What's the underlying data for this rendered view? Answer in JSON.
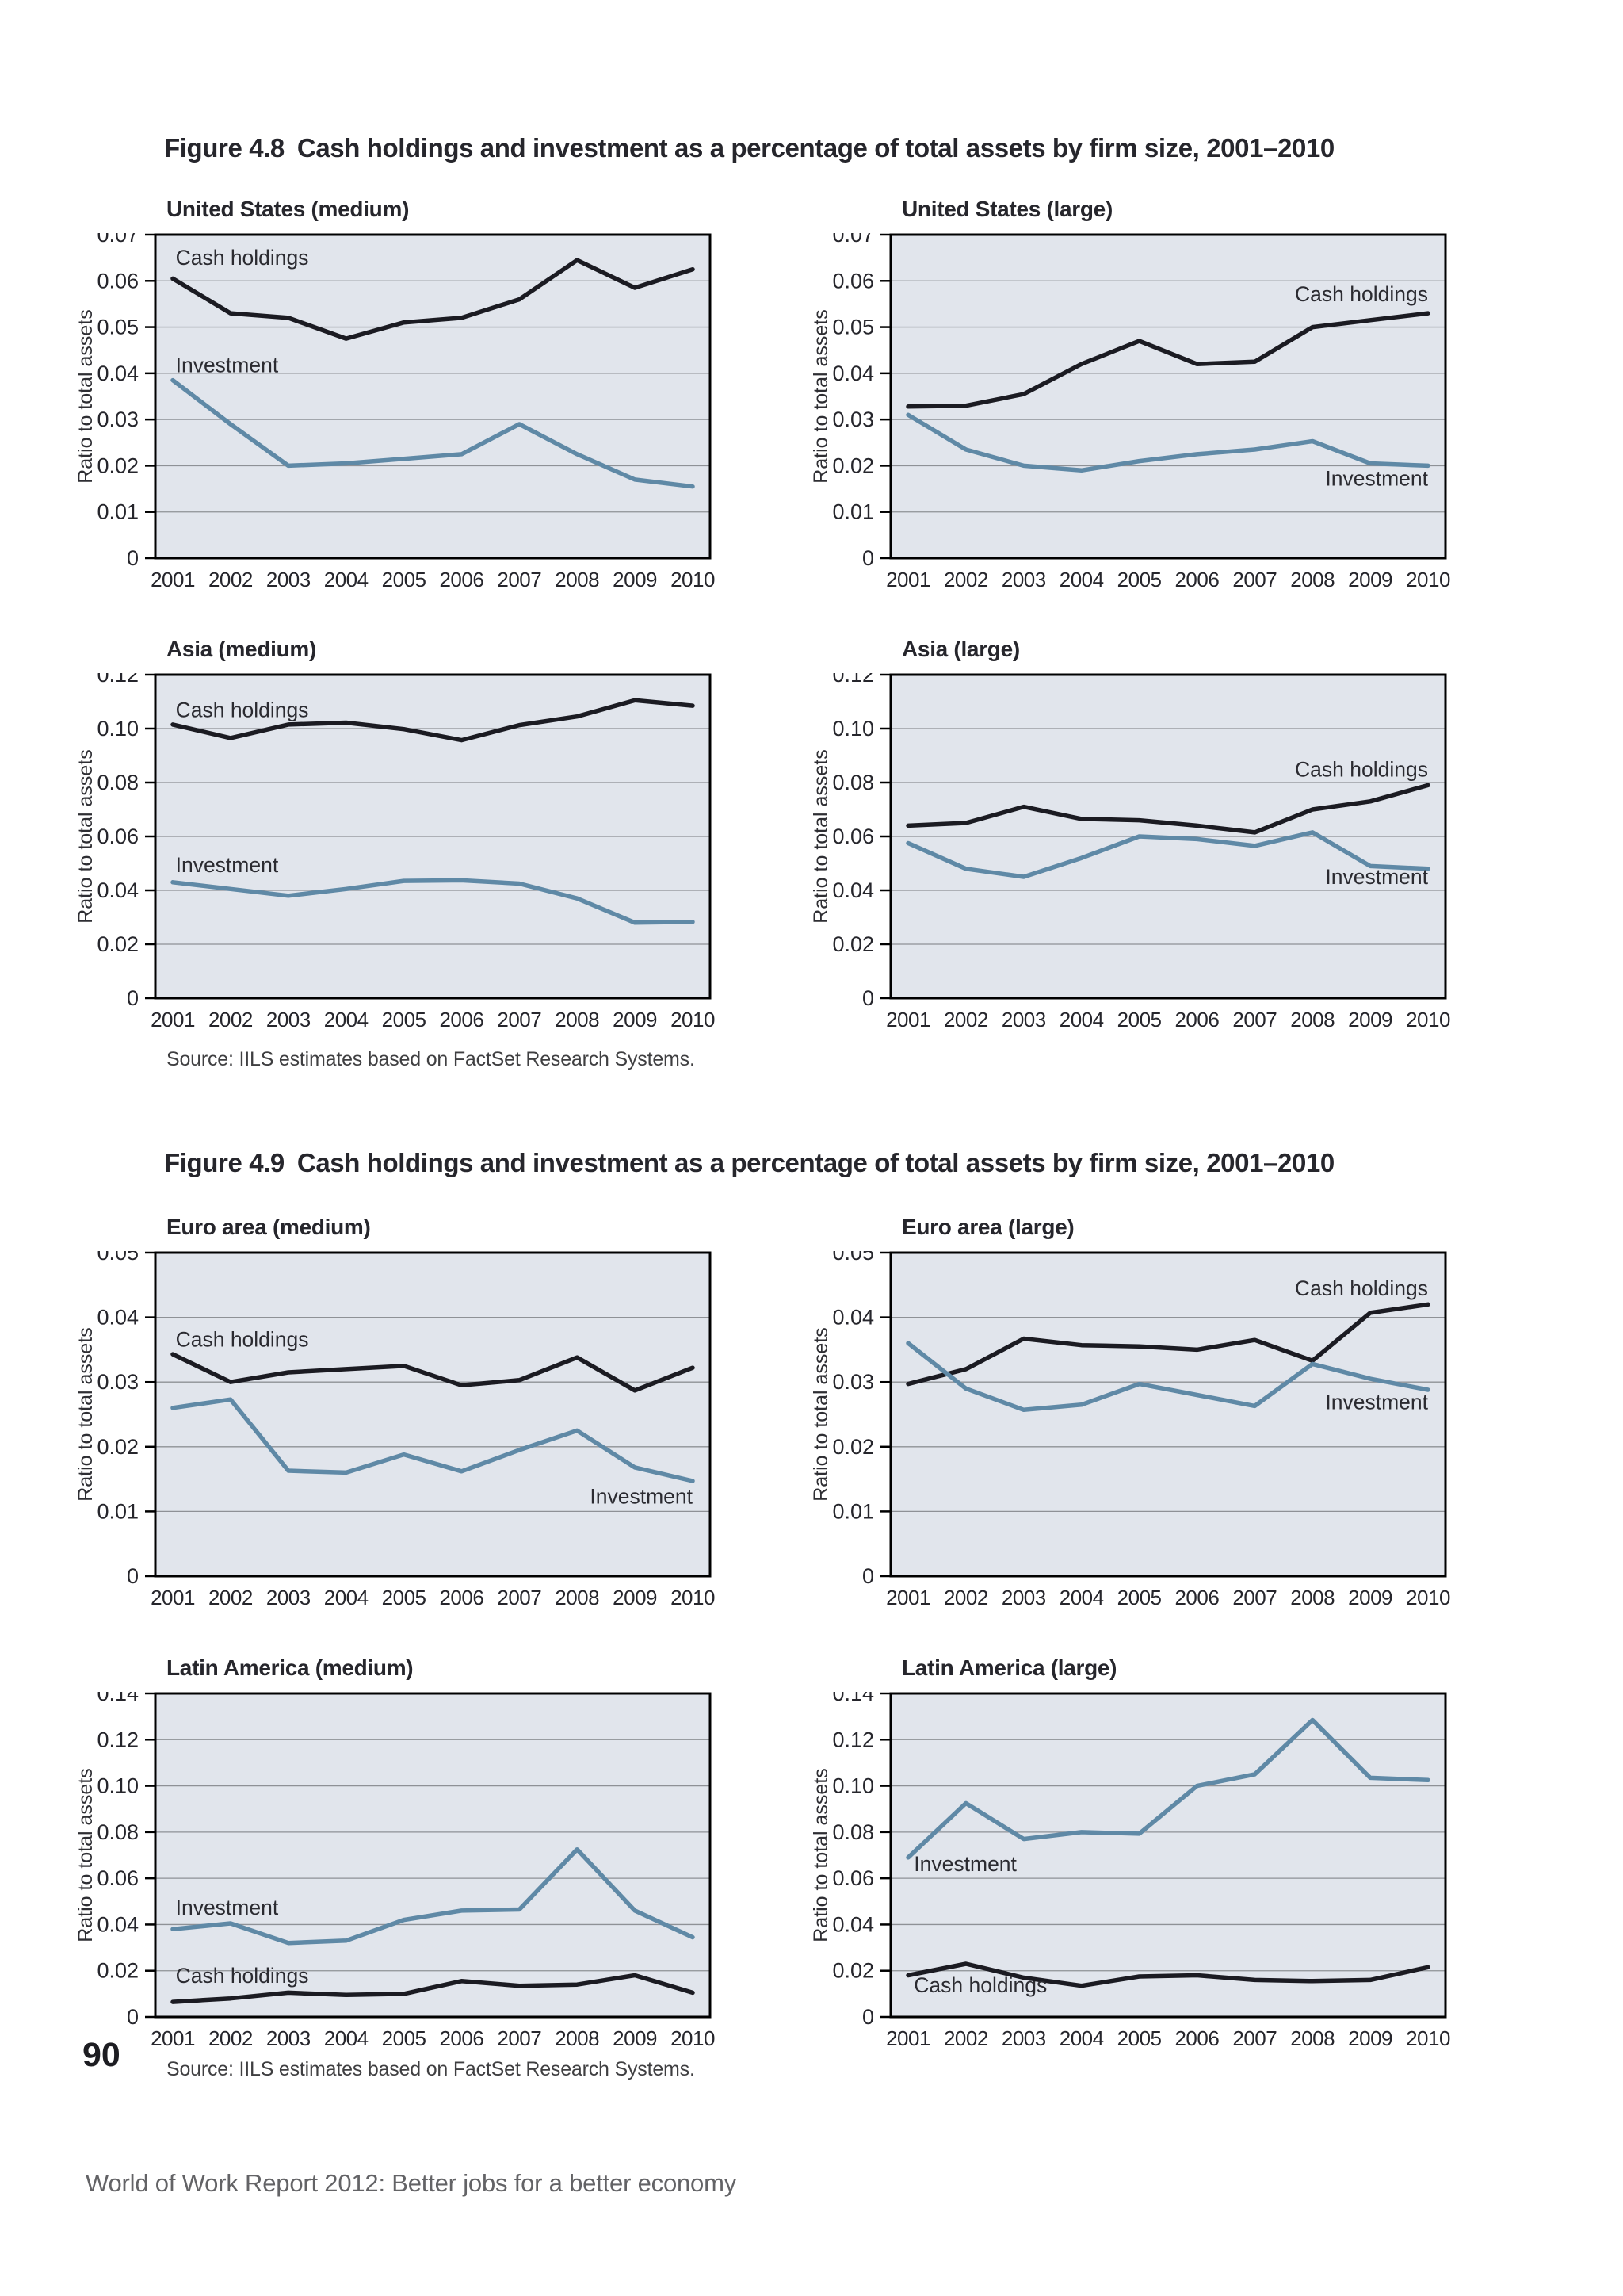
{
  "page": {
    "number": "90",
    "footer": "World of Work Report 2012: Better jobs for a better economy"
  },
  "figures": [
    {
      "label": "Figure 4.8",
      "title": "Cash holdings and investment as a percentage of total assets by firm size, 2001–2010",
      "source": "Source: IILS estimates based on FactSet Research Systems."
    },
    {
      "label": "Figure 4.9",
      "title": "Cash holdings and investment as a percentage of total assets by firm size, 2001–2010",
      "source": "Source: IILS estimates based on FactSet Research Systems."
    }
  ],
  "colors": {
    "plot_bg": "#e1e5ec",
    "grid": "#8e9196",
    "border": "#000000",
    "cash": "#1b1b22",
    "investment": "#5f89a6",
    "text": "#26262c"
  },
  "axis": {
    "ylabel": "Ratio to total assets",
    "years": [
      "2001",
      "2002",
      "2003",
      "2004",
      "2005",
      "2006",
      "2007",
      "2008",
      "2009",
      "2010"
    ]
  },
  "chart_data": [
    {
      "type": "line",
      "title": "United States (medium)",
      "figure": "Figure 4.8",
      "xlabel": "",
      "ylabel": "Ratio to total assets",
      "ylim": [
        0,
        0.07
      ],
      "ystep": 0.01,
      "grid": true,
      "x": [
        2001,
        2002,
        2003,
        2004,
        2005,
        2006,
        2007,
        2008,
        2009,
        2010
      ],
      "series": [
        {
          "name": "Cash holdings",
          "key": "cash",
          "values": [
            0.0605,
            0.053,
            0.052,
            0.0475,
            0.051,
            0.052,
            0.056,
            0.0645,
            0.0585,
            0.0625
          ]
        },
        {
          "name": "Investment",
          "key": "investment",
          "values": [
            0.0385,
            0.029,
            0.02,
            0.0205,
            0.0215,
            0.0225,
            0.029,
            0.0225,
            0.017,
            0.0155
          ]
        }
      ],
      "labels": [
        {
          "text": "Cash holdings",
          "x": 2001.05,
          "y": 0.0635,
          "anchor": "start"
        },
        {
          "text": "Investment",
          "x": 2001.05,
          "y": 0.0402,
          "anchor": "start"
        }
      ]
    },
    {
      "type": "line",
      "title": "United States (large)",
      "figure": "Figure 4.8",
      "xlabel": "",
      "ylabel": "Ratio to total assets",
      "ylim": [
        0,
        0.07
      ],
      "ystep": 0.01,
      "grid": true,
      "x": [
        2001,
        2002,
        2003,
        2004,
        2005,
        2006,
        2007,
        2008,
        2009,
        2010
      ],
      "series": [
        {
          "name": "Cash holdings",
          "key": "cash",
          "values": [
            0.0328,
            0.033,
            0.0355,
            0.042,
            0.047,
            0.042,
            0.0425,
            0.05,
            0.0515,
            0.053
          ]
        },
        {
          "name": "Investment",
          "key": "investment",
          "values": [
            0.031,
            0.0235,
            0.02,
            0.019,
            0.021,
            0.0225,
            0.0235,
            0.0253,
            0.0205,
            0.02
          ]
        }
      ],
      "labels": [
        {
          "text": "Cash holdings",
          "x": 2010,
          "y": 0.0556,
          "anchor": "end"
        },
        {
          "text": "Investment",
          "x": 2010,
          "y": 0.0157,
          "anchor": "end"
        }
      ]
    },
    {
      "type": "line",
      "title": "Asia (medium)",
      "figure": "Figure 4.8",
      "xlabel": "",
      "ylabel": "Ratio to total assets",
      "ylim": [
        0,
        0.12
      ],
      "ystep": 0.02,
      "grid": true,
      "x": [
        2001,
        2002,
        2003,
        2004,
        2005,
        2006,
        2007,
        2008,
        2009,
        2010
      ],
      "series": [
        {
          "name": "Cash holdings",
          "key": "cash",
          "values": [
            0.1015,
            0.0965,
            0.1015,
            0.1022,
            0.0998,
            0.0957,
            0.1013,
            0.1045,
            0.1105,
            0.1085
          ]
        },
        {
          "name": "Investment",
          "key": "investment",
          "values": [
            0.043,
            0.0405,
            0.038,
            0.0405,
            0.0435,
            0.0437,
            0.0425,
            0.037,
            0.028,
            0.0283
          ]
        }
      ],
      "labels": [
        {
          "text": "Cash holdings",
          "x": 2001.05,
          "y": 0.1043,
          "anchor": "start"
        },
        {
          "text": "Investment",
          "x": 2001.05,
          "y": 0.0468,
          "anchor": "start"
        }
      ]
    },
    {
      "type": "line",
      "title": "Asia (large)",
      "figure": "Figure 4.8",
      "xlabel": "",
      "ylabel": "Ratio to total assets",
      "ylim": [
        0,
        0.12
      ],
      "ystep": 0.02,
      "grid": true,
      "x": [
        2001,
        2002,
        2003,
        2004,
        2005,
        2006,
        2007,
        2008,
        2009,
        2010
      ],
      "series": [
        {
          "name": "Cash holdings",
          "key": "cash",
          "values": [
            0.064,
            0.065,
            0.071,
            0.0665,
            0.066,
            0.064,
            0.0615,
            0.07,
            0.073,
            0.079
          ]
        },
        {
          "name": "Investment",
          "key": "investment",
          "values": [
            0.0575,
            0.048,
            0.045,
            0.052,
            0.06,
            0.059,
            0.0565,
            0.0615,
            0.049,
            0.048
          ]
        }
      ],
      "labels": [
        {
          "text": "Cash holdings",
          "x": 2010,
          "y": 0.0822,
          "anchor": "end"
        },
        {
          "text": "Investment",
          "x": 2010,
          "y": 0.0424,
          "anchor": "end"
        }
      ]
    },
    {
      "type": "line",
      "title": "Euro area (medium)",
      "figure": "Figure 4.9",
      "xlabel": "",
      "ylabel": "Ratio to total assets",
      "ylim": [
        0,
        0.05
      ],
      "ystep": 0.01,
      "grid": true,
      "x": [
        2001,
        2002,
        2003,
        2004,
        2005,
        2006,
        2007,
        2008,
        2009,
        2010
      ],
      "series": [
        {
          "name": "Cash holdings",
          "key": "cash",
          "values": [
            0.0343,
            0.03,
            0.0315,
            0.032,
            0.0325,
            0.0295,
            0.0303,
            0.0338,
            0.0287,
            0.0322
          ]
        },
        {
          "name": "Investment",
          "key": "investment",
          "values": [
            0.026,
            0.0273,
            0.0163,
            0.016,
            0.0188,
            0.0162,
            0.0195,
            0.0225,
            0.0168,
            0.0147
          ]
        }
      ],
      "labels": [
        {
          "text": "Cash holdings",
          "x": 2001.05,
          "y": 0.0355,
          "anchor": "start"
        },
        {
          "text": "Investment",
          "x": 2010,
          "y": 0.0112,
          "anchor": "end"
        }
      ]
    },
    {
      "type": "line",
      "title": "Euro area (large)",
      "figure": "Figure 4.9",
      "xlabel": "",
      "ylabel": "Ratio to total assets",
      "ylim": [
        0,
        0.05
      ],
      "ystep": 0.01,
      "grid": true,
      "x": [
        2001,
        2002,
        2003,
        2004,
        2005,
        2006,
        2007,
        2008,
        2009,
        2010
      ],
      "series": [
        {
          "name": "Cash holdings",
          "key": "cash",
          "values": [
            0.0297,
            0.032,
            0.0367,
            0.0357,
            0.0355,
            0.035,
            0.0365,
            0.0333,
            0.0407,
            0.042
          ]
        },
        {
          "name": "Investment",
          "key": "investment",
          "values": [
            0.036,
            0.029,
            0.0257,
            0.0265,
            0.0297,
            0.028,
            0.0263,
            0.0328,
            0.0305,
            0.0288
          ]
        }
      ],
      "labels": [
        {
          "text": "Cash holdings",
          "x": 2010,
          "y": 0.0434,
          "anchor": "end"
        },
        {
          "text": "Investment",
          "x": 2010,
          "y": 0.0258,
          "anchor": "end"
        }
      ]
    },
    {
      "type": "line",
      "title": "Latin America (medium)",
      "figure": "Figure 4.9",
      "xlabel": "",
      "ylabel": "Ratio to total assets",
      "ylim": [
        0,
        0.14
      ],
      "ystep": 0.02,
      "grid": true,
      "x": [
        2001,
        2002,
        2003,
        2004,
        2005,
        2006,
        2007,
        2008,
        2009,
        2010
      ],
      "series": [
        {
          "name": "Cash holdings",
          "key": "cash",
          "values": [
            0.0065,
            0.008,
            0.0105,
            0.0095,
            0.01,
            0.0155,
            0.0135,
            0.014,
            0.018,
            0.0105
          ]
        },
        {
          "name": "Investment",
          "key": "investment",
          "values": [
            0.038,
            0.0405,
            0.032,
            0.033,
            0.042,
            0.046,
            0.0465,
            0.0725,
            0.046,
            0.0345
          ]
        }
      ],
      "labels": [
        {
          "text": "Investment",
          "x": 2001.05,
          "y": 0.0442,
          "anchor": "start"
        },
        {
          "text": "Cash holdings",
          "x": 2001.05,
          "y": 0.0147,
          "anchor": "start"
        }
      ]
    },
    {
      "type": "line",
      "title": "Latin America (large)",
      "figure": "Figure 4.9",
      "xlabel": "",
      "ylabel": "Ratio to total assets",
      "ylim": [
        0,
        0.14
      ],
      "ystep": 0.02,
      "grid": true,
      "x": [
        2001,
        2002,
        2003,
        2004,
        2005,
        2006,
        2007,
        2008,
        2009,
        2010
      ],
      "series": [
        {
          "name": "Cash holdings",
          "key": "cash",
          "values": [
            0.018,
            0.023,
            0.017,
            0.0135,
            0.0175,
            0.018,
            0.016,
            0.0155,
            0.016,
            0.0215
          ]
        },
        {
          "name": "Investment",
          "key": "investment",
          "values": [
            0.069,
            0.0925,
            0.077,
            0.08,
            0.0793,
            0.1,
            0.105,
            0.1285,
            0.1035,
            0.1025
          ]
        }
      ],
      "labels": [
        {
          "text": "Investment",
          "x": 2001.1,
          "y": 0.0632,
          "anchor": "start"
        },
        {
          "text": "Cash holdings",
          "x": 2001.1,
          "y": 0.0106,
          "anchor": "start"
        }
      ]
    }
  ]
}
